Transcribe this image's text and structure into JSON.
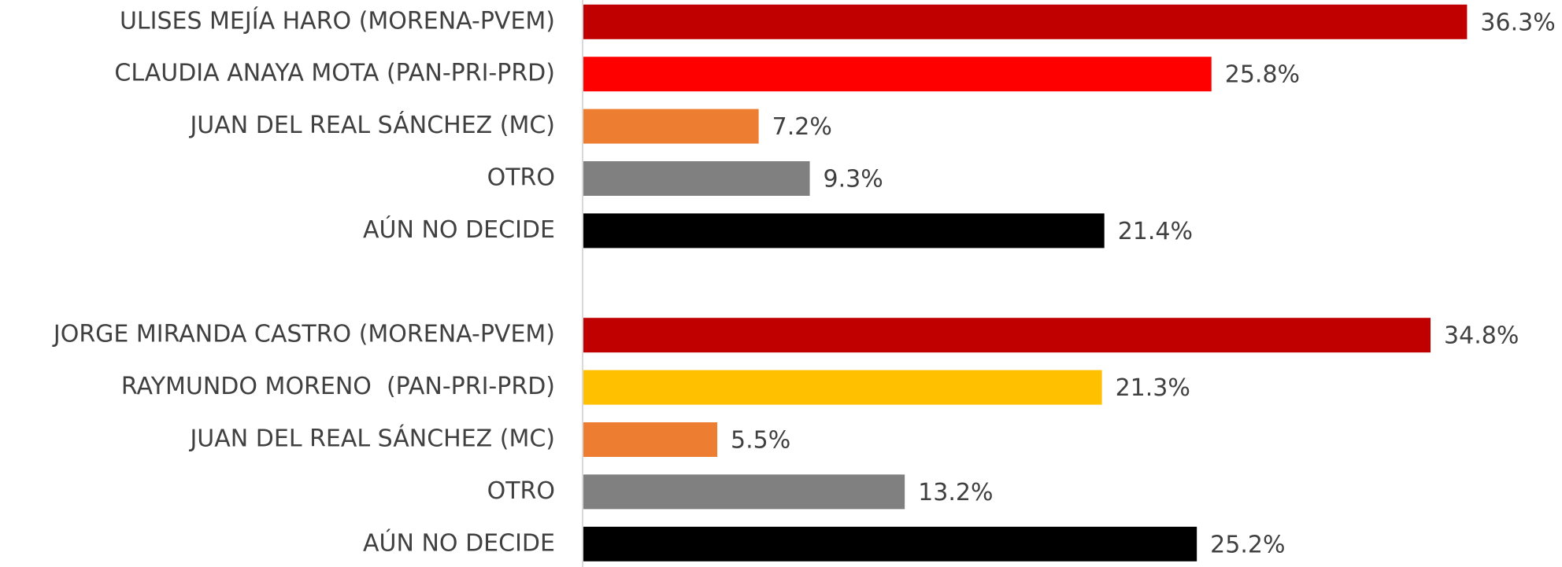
{
  "chart_data": {
    "type": "hbar",
    "categories": [
      "ULISES MEJÍA HARO (MORENA-PVEM)",
      "CLAUDIA ANAYA MOTA (PAN-PRI-PRD)",
      "JUAN DEL REAL SÁNCHEZ (MC)",
      "OTRO",
      "AÚN NO DECIDE",
      null,
      "JORGE MIRANDA CASTRO (MORENA-PVEM)",
      "RAYMUNDO MORENO  (PAN-PRI-PRD)",
      "JUAN DEL REAL SÁNCHEZ (MC)",
      "OTRO",
      "AÚN NO DECIDE"
    ],
    "values": [
      36.3,
      25.8,
      7.2,
      9.3,
      21.4,
      null,
      34.8,
      21.3,
      5.5,
      13.2,
      25.2
    ],
    "value_labels": [
      "36.3%",
      "25.8%",
      "7.2%",
      "9.3%",
      "21.4%",
      null,
      "34.8%",
      "21.3%",
      "5.5%",
      "13.2%",
      "25.2%"
    ],
    "colors": [
      "#c00000",
      "#ff0000",
      "#ed7d31",
      "#808080",
      "#000000",
      null,
      "#c00000",
      "#ffc000",
      "#ed7d31",
      "#808080",
      "#000000"
    ]
  }
}
